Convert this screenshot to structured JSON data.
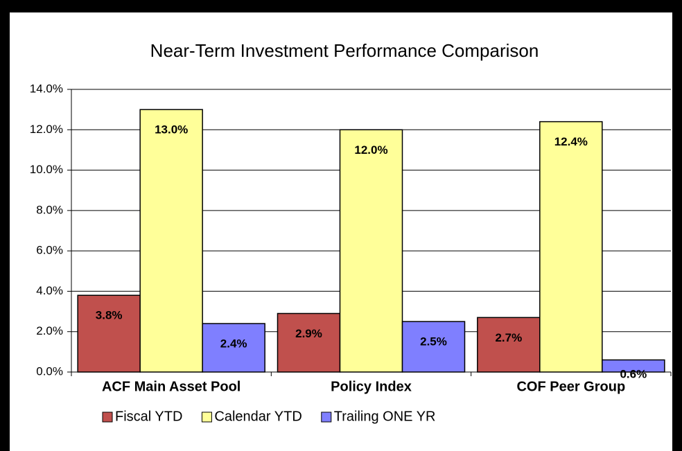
{
  "chart_data": {
    "type": "bar",
    "title": "Near-Term Investment Performance Comparison",
    "categories": [
      "ACF Main Asset Pool",
      "Policy Index",
      "COF Peer Group"
    ],
    "series": [
      {
        "name": "Fiscal YTD",
        "color": "#c0504d",
        "values": [
          3.8,
          2.9,
          2.7
        ],
        "value_labels": [
          "3.8%",
          "2.9%",
          "2.7%"
        ]
      },
      {
        "name": "Calendar YTD",
        "color": "#ffff99",
        "values": [
          13.0,
          12.0,
          12.4
        ],
        "value_labels": [
          "13.0%",
          "12.0%",
          "12.4%"
        ]
      },
      {
        "name": "Trailing ONE YR",
        "color": "#7f7fff",
        "values": [
          2.4,
          2.5,
          0.6
        ],
        "value_labels": [
          "2.4%",
          "2.5%",
          "0.6%"
        ]
      }
    ],
    "ylim": [
      0,
      14
    ],
    "yticks": [
      {
        "value": 0,
        "label": "0.0%"
      },
      {
        "value": 2,
        "label": "2.0%"
      },
      {
        "value": 4,
        "label": "4.0%"
      },
      {
        "value": 6,
        "label": "6.0%"
      },
      {
        "value": 8,
        "label": "8.0%"
      },
      {
        "value": 10,
        "label": "10.0%"
      },
      {
        "value": 12,
        "label": "12.0%"
      },
      {
        "value": 14,
        "label": "14.0%"
      }
    ],
    "grid": true,
    "legend": "bottom"
  }
}
